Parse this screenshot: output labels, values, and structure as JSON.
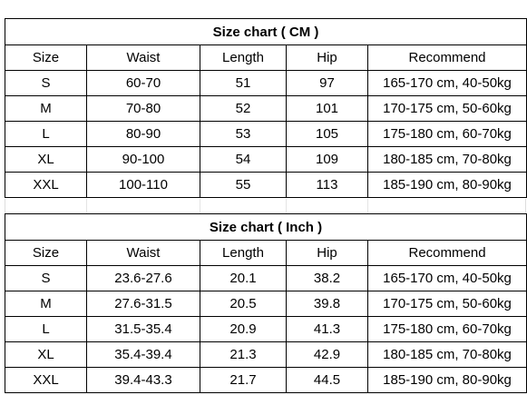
{
  "tables": [
    {
      "title": "Size chart ( CM )",
      "headers": [
        "Size",
        "Waist",
        "Length",
        "Hip",
        "Recommend"
      ],
      "rows": [
        [
          "S",
          "60-70",
          51,
          97,
          "165-170 cm, 40-50kg"
        ],
        [
          "M",
          "70-80",
          52,
          101,
          "170-175 cm, 50-60kg"
        ],
        [
          "L",
          "80-90",
          53,
          105,
          "175-180 cm, 60-70kg"
        ],
        [
          "XL",
          "90-100",
          54,
          109,
          "180-185 cm, 70-80kg"
        ],
        [
          "XXL",
          "100-110",
          55,
          113,
          "185-190 cm, 80-90kg"
        ]
      ]
    },
    {
      "title": "Size chart ( Inch )",
      "headers": [
        "Size",
        "Waist",
        "Length",
        "Hip",
        "Recommend"
      ],
      "rows": [
        [
          "S",
          "23.6-27.6",
          20.1,
          38.2,
          "165-170 cm, 40-50kg"
        ],
        [
          "M",
          "27.6-31.5",
          20.5,
          39.8,
          "170-175 cm, 50-60kg"
        ],
        [
          "L",
          "31.5-35.4",
          20.9,
          41.3,
          "175-180 cm, 60-70kg"
        ],
        [
          "XL",
          "35.4-39.4",
          21.3,
          42.9,
          "180-185 cm, 70-80kg"
        ],
        [
          "XXL",
          "39.4-43.3",
          21.7,
          44.5,
          "185-190 cm, 80-90kg"
        ]
      ]
    }
  ]
}
